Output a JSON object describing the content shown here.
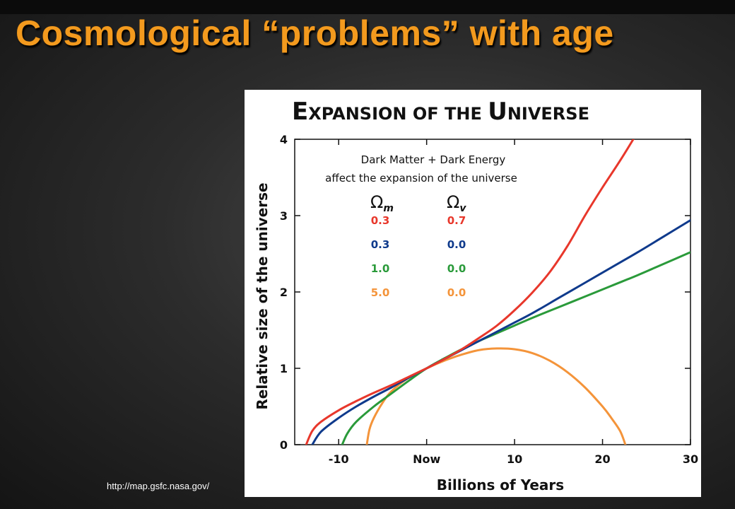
{
  "slide": {
    "title": "Cosmological “problems” with age",
    "source_url": "http://map.gsfc.nasa.gov/"
  },
  "chart_data": {
    "type": "line",
    "title": "Expansion of the Universe",
    "title_display": [
      "E",
      "XPANSION OF THE ",
      "U",
      "NIVERSE"
    ],
    "xlabel": "Billions of Years",
    "ylabel": "Relative size of the universe",
    "x_ticks": [
      {
        "value": -10,
        "label": "-10"
      },
      {
        "value": 0,
        "label": "Now"
      },
      {
        "value": 10,
        "label": "10"
      },
      {
        "value": 20,
        "label": "20"
      },
      {
        "value": 30,
        "label": "30"
      }
    ],
    "y_ticks": [
      {
        "value": 0,
        "label": "0"
      },
      {
        "value": 1,
        "label": "1"
      },
      {
        "value": 2,
        "label": "2"
      },
      {
        "value": 3,
        "label": "3"
      },
      {
        "value": 4,
        "label": "4"
      }
    ],
    "xlim": [
      -15,
      30
    ],
    "ylim": [
      0,
      4
    ],
    "grid": false,
    "annotation": [
      "Dark Matter + Dark Energy",
      "affect the expansion of the universe"
    ],
    "legend": {
      "position": "top-left",
      "headers": {
        "symbol": "Ω",
        "m_sub": "m",
        "v_sub": "v"
      },
      "rows": [
        {
          "omega_m": "0.3",
          "omega_v": "0.7",
          "color": "#e8372b"
        },
        {
          "omega_m": "0.3",
          "omega_v": "0.0",
          "color": "#0f3a8c"
        },
        {
          "omega_m": "1.0",
          "omega_v": "0.0",
          "color": "#2a9a3a"
        },
        {
          "omega_m": "5.0",
          "omega_v": "0.0",
          "color": "#f4943a"
        }
      ]
    },
    "series": [
      {
        "omega_m": 0.3,
        "omega_v": 0.7,
        "color": "#e8372b",
        "x": [
          -13.7,
          -13,
          -12,
          -10,
          -8,
          -6,
          -4,
          -2,
          0,
          2,
          4,
          6,
          8,
          10,
          12,
          14,
          16,
          18,
          20,
          22,
          23.5
        ],
        "y": [
          0,
          0.18,
          0.3,
          0.45,
          0.57,
          0.68,
          0.78,
          0.89,
          1.0,
          1.12,
          1.25,
          1.4,
          1.56,
          1.76,
          1.99,
          2.26,
          2.6,
          3.0,
          3.37,
          3.72,
          4.0
        ]
      },
      {
        "omega_m": 0.3,
        "omega_v": 0.0,
        "color": "#0f3a8c",
        "x": [
          -13.0,
          -12,
          -10,
          -8,
          -6,
          -4,
          -2,
          0,
          2,
          4,
          6,
          8,
          10,
          12,
          15,
          18,
          21,
          24,
          27,
          30
        ],
        "y": [
          0,
          0.17,
          0.35,
          0.5,
          0.63,
          0.75,
          0.88,
          1.0,
          1.12,
          1.24,
          1.36,
          1.48,
          1.6,
          1.72,
          1.92,
          2.12,
          2.32,
          2.52,
          2.73,
          2.94
        ]
      },
      {
        "omega_m": 1.0,
        "omega_v": 0.0,
        "color": "#2a9a3a",
        "x": [
          -9.6,
          -9,
          -8,
          -6,
          -4,
          -2,
          0,
          2,
          4,
          6,
          8,
          10,
          12,
          15,
          18,
          21,
          24,
          27,
          30
        ],
        "y": [
          0,
          0.15,
          0.3,
          0.5,
          0.67,
          0.84,
          1.0,
          1.13,
          1.25,
          1.36,
          1.46,
          1.56,
          1.66,
          1.8,
          1.94,
          2.08,
          2.22,
          2.37,
          2.52
        ]
      },
      {
        "omega_m": 5.0,
        "omega_v": 0.0,
        "color": "#f4943a",
        "x": [
          -6.8,
          -6.5,
          -6,
          -5,
          -4,
          -2,
          0,
          2,
          4,
          6,
          8,
          10,
          12,
          14,
          16,
          18,
          20,
          21,
          22,
          22.6
        ],
        "y": [
          0,
          0.2,
          0.35,
          0.55,
          0.7,
          0.88,
          1.0,
          1.1,
          1.18,
          1.24,
          1.26,
          1.25,
          1.2,
          1.1,
          0.95,
          0.75,
          0.5,
          0.35,
          0.18,
          0
        ]
      }
    ]
  }
}
